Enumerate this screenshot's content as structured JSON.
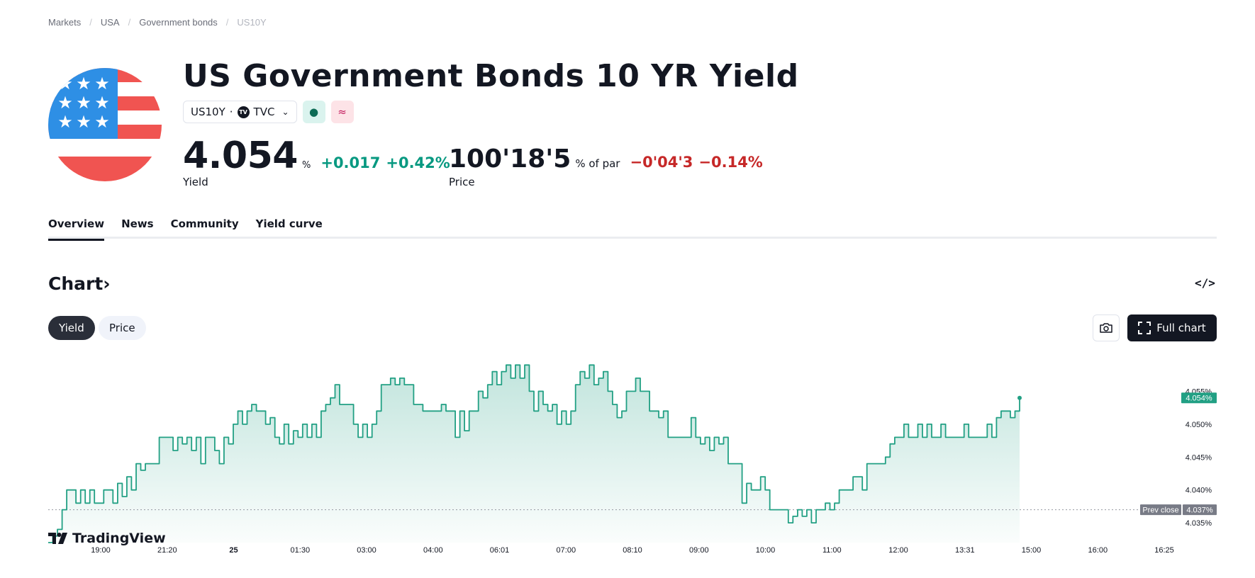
{
  "breadcrumb": [
    "Markets",
    "USA",
    "Government bonds",
    "US10Y"
  ],
  "title": "US Government Bonds 10 YR Yield",
  "symbol": {
    "ticker": "US10Y",
    "dot": "·",
    "exchange": "TVC",
    "badge_logo": "TV",
    "green_badge": "●",
    "pink_badge": "≈"
  },
  "yield": {
    "value": "4.054",
    "unit": "%",
    "change": "+0.017",
    "change_pct": "+0.42%",
    "label": "Yield"
  },
  "price": {
    "value": "100'18'5",
    "unit": "% of par",
    "change": "−0'04'3",
    "change_pct": "−0.14%",
    "label": "Price"
  },
  "tabs": [
    "Overview",
    "News",
    "Community",
    "Yield curve"
  ],
  "chart_section": {
    "heading": "Chart",
    "arrow": "›",
    "embed": "</>",
    "yield_label": "Yield",
    "price_label": "Price",
    "full_chart": "Full chart",
    "brand": "TradingView"
  },
  "colors": {
    "up": "#089981",
    "down": "#c62828",
    "line": "#22a084",
    "dark": "#131722"
  },
  "chart_data": {
    "type": "area",
    "x_ticks": [
      "19:00",
      "21:20",
      "25",
      "01:30",
      "03:00",
      "04:00",
      "06:01",
      "07:00",
      "08:10",
      "09:00",
      "10:00",
      "11:00",
      "12:00",
      "13:31",
      "15:00",
      "16:00",
      "16:25"
    ],
    "y_ticks": [
      "4.055%",
      "4.050%",
      "4.045%",
      "4.040%",
      "4.035%"
    ],
    "ylim": [
      4.032,
      4.06
    ],
    "last_value": 4.054,
    "last_label": "4.054%",
    "prev_close": 4.037,
    "prev_close_label": "Prev close",
    "prev_close_value": "4.037%",
    "values": [
      4.032,
      4.033,
      4.034,
      4.037,
      4.04,
      4.04,
      4.038,
      4.04,
      4.038,
      4.04,
      4.038,
      4.038,
      4.04,
      4.04,
      4.038,
      4.041,
      4.039,
      4.042,
      4.04,
      4.044,
      4.043,
      4.044,
      4.044,
      4.044,
      4.048,
      4.048,
      4.048,
      4.046,
      4.048,
      4.047,
      4.048,
      4.046,
      4.048,
      4.044,
      4.048,
      4.048,
      4.046,
      4.044,
      4.048,
      4.047,
      4.05,
      4.052,
      4.05,
      4.052,
      4.053,
      4.052,
      4.052,
      4.05,
      4.051,
      4.048,
      4.047,
      4.05,
      4.047,
      4.049,
      4.048,
      4.05,
      4.048,
      4.05,
      4.048,
      4.052,
      4.053,
      4.054,
      4.056,
      4.053,
      4.053,
      4.053,
      4.05,
      4.048,
      4.05,
      4.048,
      4.05,
      4.052,
      4.056,
      4.056,
      4.057,
      4.056,
      4.057,
      4.056,
      4.056,
      4.053,
      4.053,
      4.052,
      4.052,
      4.052,
      4.052,
      4.053,
      4.052,
      4.052,
      4.048,
      4.052,
      4.049,
      4.052,
      4.052,
      4.055,
      4.054,
      4.056,
      4.058,
      4.056,
      4.058,
      4.059,
      4.057,
      4.059,
      4.057,
      4.059,
      4.055,
      4.052,
      4.055,
      4.053,
      4.052,
      4.053,
      4.05,
      4.052,
      4.05,
      4.052,
      4.056,
      4.058,
      4.057,
      4.059,
      4.056,
      4.057,
      4.058,
      4.055,
      4.053,
      4.051,
      4.052,
      4.055,
      4.055,
      4.057,
      4.055,
      4.055,
      4.052,
      4.052,
      4.051,
      4.052,
      4.048,
      4.048,
      4.048,
      4.048,
      4.048,
      4.051,
      4.048,
      4.047,
      4.048,
      4.046,
      4.048,
      4.047,
      4.048,
      4.044,
      4.044,
      4.044,
      4.038,
      4.041,
      4.04,
      4.04,
      4.042,
      4.04,
      4.037,
      4.037,
      4.037,
      4.037,
      4.035,
      4.036,
      4.037,
      4.036,
      4.037,
      4.035,
      4.037,
      4.037,
      4.038,
      4.037,
      4.038,
      4.04,
      4.04,
      4.04,
      4.042,
      4.042,
      4.04,
      4.044,
      4.044,
      4.044,
      4.044,
      4.045,
      4.047,
      4.048,
      4.048,
      4.05,
      4.048,
      4.048,
      4.05,
      4.048,
      4.05,
      4.048,
      4.048,
      4.05,
      4.048,
      4.048,
      4.048,
      4.048,
      4.05,
      4.048,
      4.048,
      4.048,
      4.048,
      4.05,
      4.048,
      4.051,
      4.052,
      4.052,
      4.051,
      4.052,
      4.054
    ]
  }
}
